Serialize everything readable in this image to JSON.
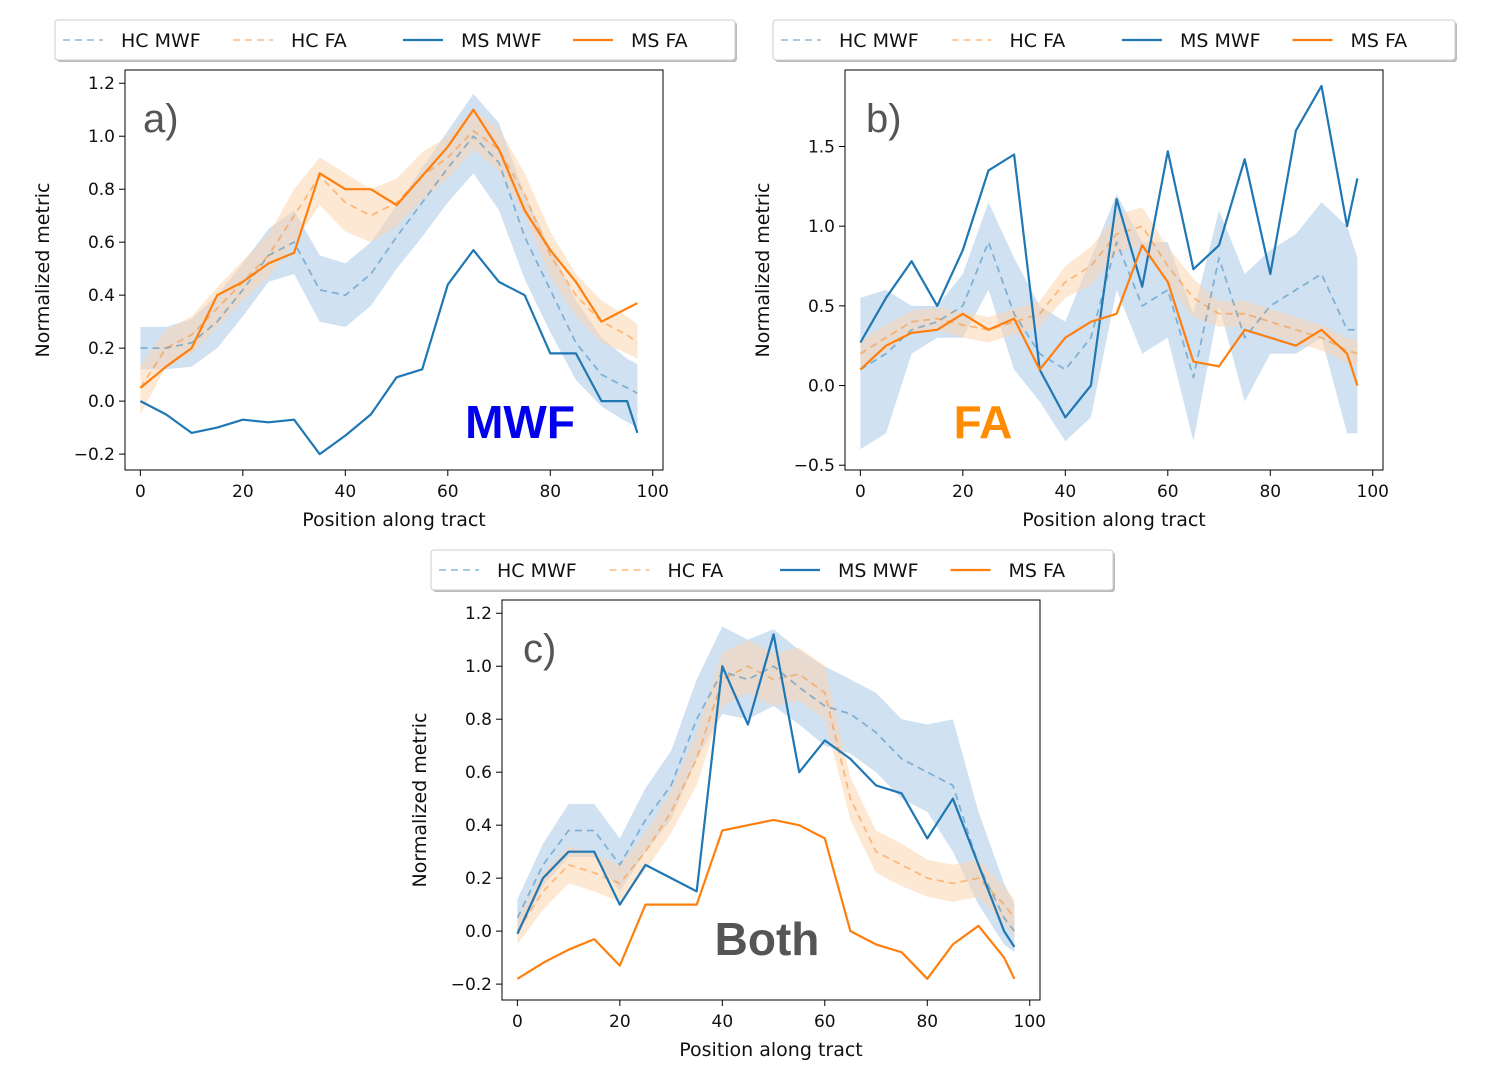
{
  "figure": {
    "legend_labels": [
      "HC MWF",
      "HC FA",
      "MS MWF",
      "MS FA"
    ],
    "colors": {
      "mwf": "#1f77b4",
      "fa": "#ff7f0e",
      "hc_mwf_band": "#a9c9e6",
      "hc_fa_band": "#fcd5b0",
      "mwf_word": "#0000ee",
      "fa_word": "#ff8c00",
      "both_word": "#555555"
    }
  },
  "chart_data": [
    {
      "type": "line",
      "panel_tag": "a)",
      "panel_word": "MWF",
      "xlabel": "Position along tract",
      "ylabel": "Normalized metric",
      "xlim": [
        -3,
        102
      ],
      "ylim": [
        -0.26,
        1.25
      ],
      "xticks": [
        0,
        20,
        40,
        60,
        80,
        100
      ],
      "yticks": [
        -0.2,
        0.0,
        0.2,
        0.4,
        0.6,
        0.8,
        1.0,
        1.2
      ],
      "ytick_labels": [
        "−0.2",
        "0.0",
        "0.2",
        "0.4",
        "0.6",
        "0.8",
        "1.0",
        "1.2"
      ],
      "grid": false,
      "legend_position": "top",
      "x": [
        0,
        5,
        10,
        15,
        20,
        25,
        30,
        35,
        40,
        45,
        50,
        55,
        60,
        65,
        70,
        75,
        80,
        85,
        90,
        95,
        97
      ],
      "series": [
        {
          "name": "HC MWF",
          "style": "dashed-band",
          "values": [
            0.2,
            0.2,
            0.22,
            0.3,
            0.42,
            0.55,
            0.6,
            0.42,
            0.4,
            0.48,
            0.62,
            0.75,
            0.88,
            1.0,
            0.9,
            0.62,
            0.42,
            0.22,
            0.1,
            0.05,
            0.03
          ],
          "lower": [
            0.12,
            0.12,
            0.13,
            0.2,
            0.32,
            0.45,
            0.48,
            0.3,
            0.28,
            0.36,
            0.5,
            0.62,
            0.75,
            0.86,
            0.72,
            0.46,
            0.26,
            0.08,
            -0.02,
            -0.08,
            -0.1
          ],
          "upper": [
            0.28,
            0.28,
            0.31,
            0.4,
            0.52,
            0.65,
            0.72,
            0.55,
            0.52,
            0.6,
            0.74,
            0.88,
            1.02,
            1.16,
            1.05,
            0.78,
            0.58,
            0.38,
            0.24,
            0.16,
            0.14
          ]
        },
        {
          "name": "HC FA",
          "style": "dashed-band",
          "values": [
            0.05,
            0.2,
            0.25,
            0.35,
            0.45,
            0.55,
            0.7,
            0.85,
            0.75,
            0.7,
            0.75,
            0.85,
            0.92,
            1.02,
            0.95,
            0.78,
            0.55,
            0.4,
            0.3,
            0.25,
            0.22
          ],
          "lower": [
            -0.05,
            0.13,
            0.18,
            0.28,
            0.38,
            0.47,
            0.6,
            0.74,
            0.64,
            0.6,
            0.66,
            0.76,
            0.84,
            0.95,
            0.87,
            0.7,
            0.47,
            0.32,
            0.22,
            0.18,
            0.16
          ],
          "upper": [
            0.13,
            0.27,
            0.32,
            0.43,
            0.53,
            0.63,
            0.8,
            0.92,
            0.86,
            0.8,
            0.84,
            0.94,
            1.0,
            1.1,
            1.03,
            0.86,
            0.64,
            0.48,
            0.38,
            0.32,
            0.29
          ]
        },
        {
          "name": "MS MWF",
          "style": "solid",
          "values": [
            0.0,
            -0.05,
            -0.12,
            -0.1,
            -0.07,
            -0.08,
            -0.07,
            -0.2,
            -0.13,
            -0.05,
            0.09,
            0.12,
            0.44,
            0.57,
            0.45,
            0.4,
            0.18,
            0.18,
            0.0,
            0.0,
            -0.12
          ]
        },
        {
          "name": "MS FA",
          "style": "solid",
          "values": [
            0.05,
            0.13,
            0.2,
            0.4,
            0.45,
            0.52,
            0.56,
            0.86,
            0.8,
            0.8,
            0.74,
            0.85,
            0.96,
            1.1,
            0.95,
            0.72,
            0.57,
            0.45,
            0.3,
            0.35,
            0.37
          ]
        }
      ]
    },
    {
      "type": "line",
      "panel_tag": "b)",
      "panel_word": "FA",
      "xlabel": "Position along tract",
      "ylabel": "Normalized metric",
      "xlim": [
        -3,
        102
      ],
      "ylim": [
        -0.53,
        1.98
      ],
      "xticks": [
        0,
        20,
        40,
        60,
        80,
        100
      ],
      "yticks": [
        -0.5,
        0.0,
        0.5,
        1.0,
        1.5
      ],
      "ytick_labels": [
        "−0.5",
        "0.0",
        "0.5",
        "1.0",
        "1.5"
      ],
      "grid": false,
      "legend_position": "top",
      "x": [
        0,
        5,
        10,
        15,
        20,
        25,
        30,
        35,
        40,
        45,
        50,
        55,
        60,
        65,
        70,
        75,
        80,
        85,
        90,
        95,
        97
      ],
      "series": [
        {
          "name": "HC MWF",
          "style": "dashed-band",
          "values": [
            0.1,
            0.2,
            0.35,
            0.4,
            0.5,
            0.9,
            0.45,
            0.2,
            0.1,
            0.3,
            0.9,
            0.5,
            0.6,
            0.05,
            0.8,
            0.3,
            0.5,
            0.6,
            0.7,
            0.35,
            0.35
          ],
          "lower": [
            -0.4,
            -0.3,
            0.2,
            0.3,
            0.3,
            0.6,
            0.1,
            -0.1,
            -0.35,
            -0.2,
            0.6,
            0.2,
            0.3,
            -0.35,
            0.5,
            -0.1,
            0.2,
            0.2,
            0.3,
            -0.3,
            -0.3
          ],
          "upper": [
            0.55,
            0.6,
            0.5,
            0.5,
            0.7,
            1.15,
            0.8,
            0.5,
            0.4,
            0.8,
            1.2,
            0.9,
            0.9,
            0.45,
            1.1,
            0.7,
            0.85,
            0.95,
            1.15,
            1.0,
            0.8
          ]
        },
        {
          "name": "HC FA",
          "style": "dashed-band",
          "values": [
            0.2,
            0.3,
            0.4,
            0.42,
            0.38,
            0.35,
            0.4,
            0.45,
            0.65,
            0.75,
            0.95,
            1.0,
            0.75,
            0.55,
            0.45,
            0.45,
            0.4,
            0.35,
            0.3,
            0.22,
            0.2
          ],
          "lower": [
            0.12,
            0.22,
            0.33,
            0.35,
            0.3,
            0.27,
            0.32,
            0.37,
            0.55,
            0.63,
            0.83,
            0.88,
            0.63,
            0.43,
            0.37,
            0.37,
            0.32,
            0.27,
            0.22,
            0.14,
            0.12
          ],
          "upper": [
            0.28,
            0.38,
            0.47,
            0.49,
            0.46,
            0.43,
            0.48,
            0.53,
            0.75,
            0.87,
            1.07,
            1.12,
            0.87,
            0.67,
            0.53,
            0.53,
            0.48,
            0.43,
            0.38,
            0.3,
            0.28
          ]
        },
        {
          "name": "MS MWF",
          "style": "solid",
          "values": [
            0.27,
            0.55,
            0.78,
            0.5,
            0.85,
            1.35,
            1.45,
            0.1,
            -0.2,
            0.0,
            1.17,
            0.62,
            1.47,
            0.73,
            0.88,
            1.42,
            0.7,
            1.6,
            1.88,
            1.0,
            1.3
          ]
        },
        {
          "name": "MS FA",
          "style": "solid",
          "values": [
            0.1,
            0.25,
            0.33,
            0.35,
            0.45,
            0.35,
            0.42,
            0.1,
            0.3,
            0.4,
            0.45,
            0.88,
            0.65,
            0.15,
            0.12,
            0.35,
            0.3,
            0.25,
            0.35,
            0.2,
            0.0
          ]
        }
      ]
    },
    {
      "type": "line",
      "panel_tag": "c)",
      "panel_word": "Both",
      "xlabel": "Position along tract",
      "ylabel": "Normalized metric",
      "xlim": [
        -3,
        102
      ],
      "ylim": [
        -0.26,
        1.25
      ],
      "xticks": [
        0,
        20,
        40,
        60,
        80,
        100
      ],
      "yticks": [
        -0.2,
        0.0,
        0.2,
        0.4,
        0.6,
        0.8,
        1.0,
        1.2
      ],
      "ytick_labels": [
        "−0.2",
        "0.0",
        "0.2",
        "0.4",
        "0.6",
        "0.8",
        "1.0",
        "1.2"
      ],
      "grid": false,
      "legend_position": "top",
      "x": [
        0,
        5,
        10,
        15,
        20,
        25,
        30,
        35,
        40,
        45,
        50,
        55,
        60,
        65,
        70,
        75,
        80,
        85,
        90,
        95,
        97
      ],
      "series": [
        {
          "name": "HC MWF",
          "style": "dashed-band",
          "values": [
            0.05,
            0.25,
            0.38,
            0.38,
            0.25,
            0.42,
            0.55,
            0.8,
            0.98,
            0.95,
            1.0,
            0.92,
            0.85,
            0.82,
            0.75,
            0.65,
            0.6,
            0.55,
            0.25,
            0.05,
            0.0
          ],
          "lower": [
            -0.02,
            0.17,
            0.28,
            0.28,
            0.15,
            0.3,
            0.42,
            0.65,
            0.82,
            0.8,
            0.85,
            0.78,
            0.7,
            0.67,
            0.6,
            0.5,
            0.45,
            0.3,
            0.1,
            -0.05,
            -0.08
          ],
          "upper": [
            0.12,
            0.33,
            0.48,
            0.48,
            0.35,
            0.54,
            0.68,
            0.95,
            1.15,
            1.1,
            1.14,
            1.06,
            1.0,
            0.95,
            0.9,
            0.8,
            0.78,
            0.8,
            0.45,
            0.18,
            0.1
          ]
        },
        {
          "name": "HC FA",
          "style": "dashed-band",
          "values": [
            0.0,
            0.15,
            0.25,
            0.22,
            0.18,
            0.3,
            0.45,
            0.65,
            0.95,
            1.0,
            0.95,
            0.97,
            0.9,
            0.5,
            0.3,
            0.25,
            0.2,
            0.18,
            0.2,
            0.1,
            0.05
          ],
          "lower": [
            -0.05,
            0.08,
            0.18,
            0.15,
            0.11,
            0.23,
            0.37,
            0.55,
            0.85,
            0.9,
            0.85,
            0.87,
            0.8,
            0.42,
            0.22,
            0.17,
            0.13,
            0.11,
            0.13,
            0.03,
            -0.02
          ],
          "upper": [
            0.05,
            0.22,
            0.32,
            0.29,
            0.25,
            0.37,
            0.53,
            0.75,
            1.05,
            1.1,
            1.05,
            1.07,
            1.0,
            0.58,
            0.38,
            0.33,
            0.27,
            0.25,
            0.27,
            0.17,
            0.12
          ]
        },
        {
          "name": "MS MWF",
          "style": "solid",
          "values": [
            -0.01,
            0.2,
            0.3,
            0.3,
            0.1,
            0.25,
            0.2,
            0.15,
            1.0,
            0.78,
            1.12,
            0.6,
            0.72,
            0.65,
            0.55,
            0.52,
            0.35,
            0.5,
            0.25,
            0.0,
            -0.06
          ]
        },
        {
          "name": "MS FA",
          "style": "solid",
          "values": [
            -0.18,
            -0.12,
            -0.07,
            -0.03,
            -0.13,
            0.1,
            0.1,
            0.1,
            0.38,
            0.4,
            0.42,
            0.4,
            0.35,
            0.0,
            -0.05,
            -0.08,
            -0.18,
            -0.05,
            0.02,
            -0.1,
            -0.18
          ]
        }
      ]
    }
  ]
}
